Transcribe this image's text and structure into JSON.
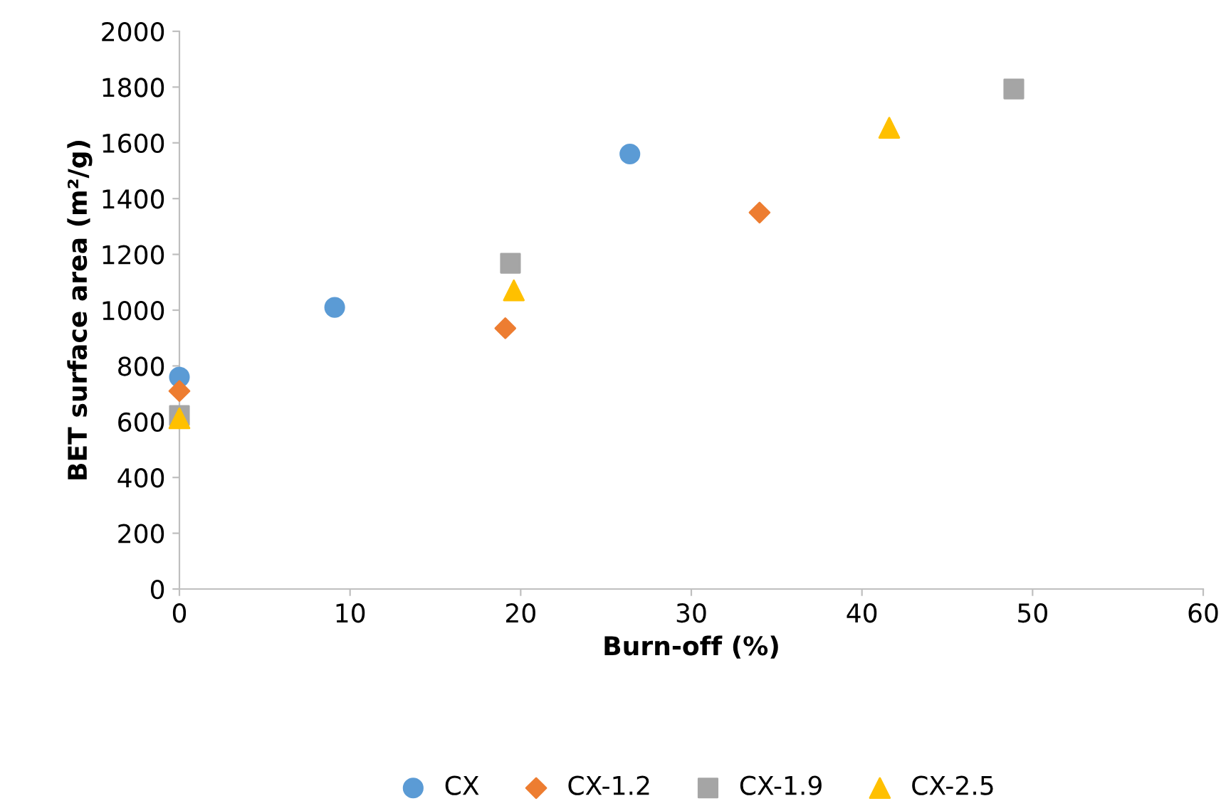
{
  "chart_data": {
    "type": "scatter",
    "xlabel": "Burn-off (%)",
    "ylabel": "BET surface area (m²/g)",
    "xlim": [
      0,
      60
    ],
    "xticks": [
      0,
      10,
      20,
      30,
      40,
      50,
      60
    ],
    "ylim": [
      0,
      2000
    ],
    "yticks": [
      0,
      200,
      400,
      600,
      800,
      1000,
      1200,
      1400,
      1600,
      1800,
      2000
    ],
    "grid": false,
    "legend": "bottom",
    "series": [
      {
        "name": "CX",
        "color": "#5b9bd5",
        "marker": "circle",
        "x": [
          0,
          9.1,
          26.4
        ],
        "values": [
          760,
          1010,
          1560
        ]
      },
      {
        "name": "CX-1.2",
        "color": "#ed7d31",
        "marker": "diamond",
        "x": [
          0,
          19.1,
          34.0
        ],
        "values": [
          710,
          935,
          1350
        ]
      },
      {
        "name": "CX-1.9",
        "color": "#a5a5a5",
        "marker": "square",
        "x": [
          0,
          19.4,
          48.9
        ],
        "values": [
          622,
          1168,
          1793
        ]
      },
      {
        "name": "CX-2.5",
        "color": "#ffc000",
        "marker": "triangle",
        "x": [
          0,
          19.6,
          41.6
        ],
        "values": [
          612,
          1071,
          1654
        ]
      }
    ]
  }
}
